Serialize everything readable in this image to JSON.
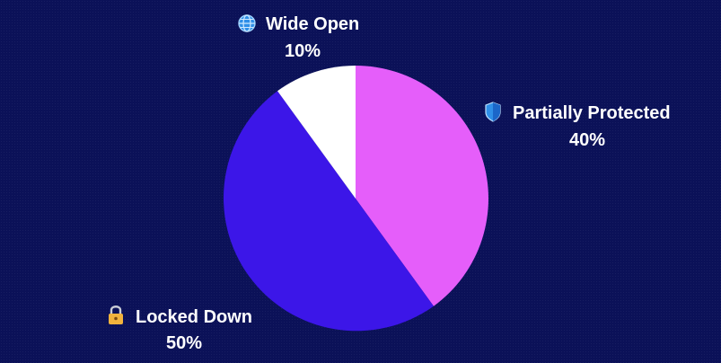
{
  "chart_data": {
    "type": "pie",
    "start_angle_deg": 0,
    "direction": "clockwise",
    "slices": [
      {
        "label": "Partially Protected",
        "value": 40,
        "value_label": "40%",
        "color": "#e55efa",
        "icon": "shield-icon"
      },
      {
        "label": "Locked Down",
        "value": 50,
        "value_label": "50%",
        "color": "#3c16e8",
        "icon": "lock-icon"
      },
      {
        "label": "Wide Open",
        "value": 10,
        "value_label": "10%",
        "color": "#ffffff",
        "icon": "globe-icon"
      }
    ],
    "title": "",
    "legend": "none"
  },
  "colors": {
    "background": "#0b1158",
    "label_text": "#ffffff"
  }
}
